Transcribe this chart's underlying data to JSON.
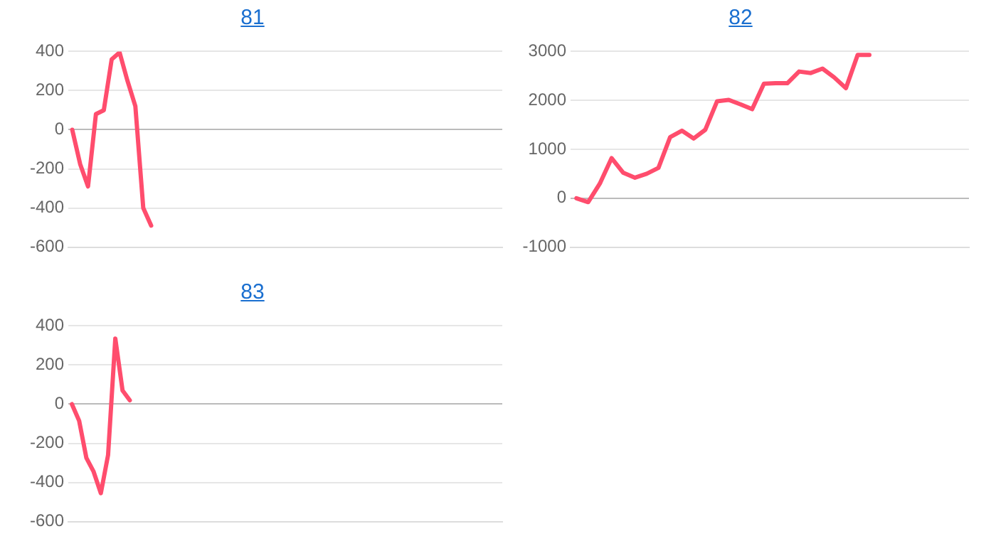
{
  "chart_data": [
    {
      "type": "line",
      "title": "81",
      "categories": [
        null,
        null,
        null,
        null,
        null,
        null,
        null,
        null,
        null,
        null,
        null,
        null,
        null,
        null,
        null,
        null,
        null,
        null,
        null,
        null,
        null,
        null,
        null,
        null,
        null,
        null,
        null,
        null,
        null,
        null,
        null,
        null,
        null,
        null,
        null,
        null,
        null,
        null,
        null,
        null,
        null,
        null,
        null,
        null,
        null,
        null,
        null,
        null,
        null,
        null,
        null,
        null,
        null,
        null,
        null
      ],
      "series": [
        {
          "color": "#ff4d6d",
          "values": [
            0,
            -175,
            -290,
            80,
            100,
            360,
            395,
            250,
            120,
            -400,
            -490,
            null,
            null,
            null,
            null,
            null,
            null,
            null,
            null,
            null,
            null,
            null,
            null,
            null,
            null,
            null,
            null,
            null,
            null,
            null,
            null,
            null,
            null,
            null,
            null,
            null,
            null,
            null,
            null,
            null,
            null,
            null,
            null,
            null,
            null,
            null,
            null,
            null,
            null,
            null,
            null,
            null,
            null,
            null,
            null
          ]
        }
      ],
      "ylim": [
        -600,
        400
      ],
      "yticks": [
        -600,
        -400,
        -200,
        0,
        200,
        400
      ],
      "grid": "y",
      "tick_labels": "y",
      "marker": "none",
      "line_style": "solid",
      "legend": false
    },
    {
      "type": "line",
      "title": "82",
      "categories": [
        null,
        null,
        null,
        null,
        null,
        null,
        null,
        null,
        null,
        null,
        null,
        null,
        null,
        null,
        null,
        null,
        null,
        null,
        null,
        null,
        null,
        null,
        null,
        null,
        null,
        null,
        null,
        null,
        null,
        null,
        null,
        null,
        null,
        null
      ],
      "series": [
        {
          "color": "#ff4d6d",
          "values": [
            0,
            -80,
            300,
            820,
            520,
            420,
            500,
            620,
            1250,
            1380,
            1220,
            1400,
            1980,
            2010,
            1920,
            1820,
            2340,
            2350,
            2350,
            2590,
            2560,
            2650,
            2470,
            2250,
            2930,
            2930,
            null,
            null,
            null,
            null,
            null,
            null,
            null,
            null
          ]
        }
      ],
      "ylim": [
        -1000,
        3000
      ],
      "yticks": [
        -1000,
        0,
        1000,
        2000,
        3000
      ],
      "grid": "y",
      "tick_labels": "y",
      "marker": "none",
      "line_style": "solid",
      "legend": false
    },
    {
      "type": "line",
      "title": "83",
      "categories": [
        null,
        null,
        null,
        null,
        null,
        null,
        null,
        null,
        null,
        null,
        null,
        null,
        null,
        null,
        null,
        null,
        null,
        null,
        null,
        null,
        null,
        null,
        null,
        null,
        null,
        null,
        null,
        null,
        null,
        null,
        null,
        null,
        null,
        null,
        null,
        null,
        null,
        null,
        null,
        null,
        null,
        null,
        null,
        null,
        null,
        null,
        null,
        null,
        null,
        null,
        null,
        null,
        null,
        null,
        null,
        null,
        null,
        null,
        null,
        null
      ],
      "series": [
        {
          "color": "#ff4d6d",
          "values": [
            0,
            -85,
            -275,
            -345,
            -455,
            -260,
            335,
            70,
            20,
            null,
            null,
            null,
            null,
            null,
            null,
            null,
            null,
            null,
            null,
            null,
            null,
            null,
            null,
            null,
            null,
            null,
            null,
            null,
            null,
            null,
            null,
            null,
            null,
            null,
            null,
            null,
            null,
            null,
            null,
            null,
            null,
            null,
            null,
            null,
            null,
            null,
            null,
            null,
            null,
            null,
            null,
            null,
            null,
            null,
            null,
            null,
            null,
            null,
            null,
            null
          ]
        }
      ],
      "ylim": [
        -600,
        400
      ],
      "yticks": [
        -600,
        -400,
        -200,
        0,
        200,
        400
      ],
      "grid": "y",
      "tick_labels": "y",
      "marker": "none",
      "line_style": "solid",
      "legend": false
    }
  ]
}
